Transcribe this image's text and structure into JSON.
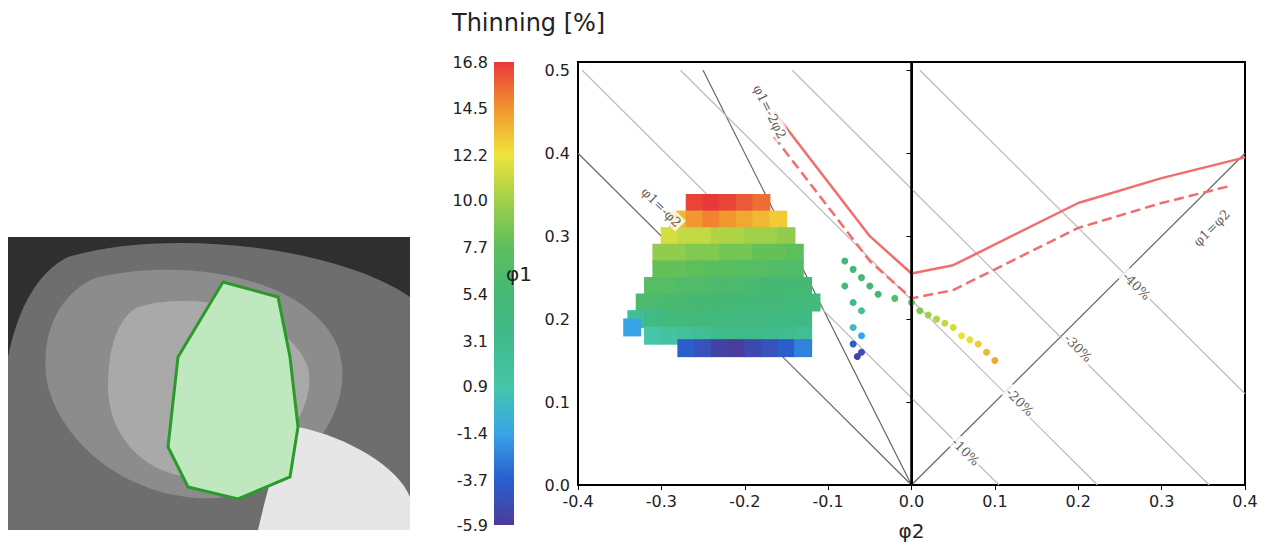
{
  "chart_data": {
    "type": "scatter",
    "title": "Thinning [%]",
    "x_label": "φ2",
    "y_label": "φ1",
    "xlim": [
      -0.4,
      0.4
    ],
    "xticks": [
      -0.4,
      -0.3,
      -0.2,
      -0.1,
      {
        "value": 0,
        "label": "0.0"
      },
      0.1,
      0.2,
      0.3,
      0.4
    ],
    "ylim": [
      0,
      0.51
    ],
    "yticks": [
      {
        "value": 0,
        "label": "0.0"
      },
      0.1,
      0.2,
      0.3,
      0.4,
      0.5
    ],
    "grid": false,
    "colorbar": {
      "range": [
        -5.9,
        16.8
      ],
      "ticks": [
        -5.9,
        -3.7,
        -1.4,
        0.9,
        3.1,
        5.4,
        7.7,
        {
          "value": 10,
          "label": "10.0"
        },
        12.2,
        14.5,
        16.8
      ],
      "colors": [
        "#4a3c9c",
        "#2a5fcf",
        "#38a6e6",
        "#46c6a8",
        "#3fba8a",
        "#45b874",
        "#5cbf5c",
        "#9fd04a",
        "#f0e43a",
        "#f2952e",
        "#e8383a"
      ]
    },
    "series": [
      {
        "marker": "square",
        "values": [
          [
            -0.26,
            0.34,
            16.5
          ],
          [
            -0.24,
            0.34,
            16.8
          ],
          [
            -0.22,
            0.34,
            16.5
          ],
          [
            -0.2,
            0.34,
            16
          ],
          [
            -0.18,
            0.34,
            15.5
          ],
          [
            -0.28,
            0.32,
            13.5
          ],
          [
            -0.26,
            0.32,
            14.5
          ],
          [
            -0.24,
            0.32,
            15
          ],
          [
            -0.22,
            0.32,
            14.5
          ],
          [
            -0.2,
            0.32,
            14
          ],
          [
            -0.18,
            0.32,
            13.5
          ],
          [
            -0.16,
            0.32,
            13
          ],
          [
            -0.29,
            0.3,
            11.5
          ],
          [
            -0.27,
            0.3,
            11
          ],
          [
            -0.25,
            0.3,
            11
          ],
          [
            -0.23,
            0.3,
            10.5
          ],
          [
            -0.21,
            0.3,
            10.5
          ],
          [
            -0.19,
            0.3,
            10
          ],
          [
            -0.17,
            0.3,
            10
          ],
          [
            -0.15,
            0.3,
            9.5
          ],
          [
            -0.3,
            0.28,
            9.5
          ],
          [
            -0.28,
            0.28,
            9.5
          ],
          [
            -0.26,
            0.28,
            9
          ],
          [
            -0.24,
            0.28,
            9
          ],
          [
            -0.22,
            0.28,
            8.5
          ],
          [
            -0.2,
            0.28,
            8.5
          ],
          [
            -0.18,
            0.28,
            8
          ],
          [
            -0.16,
            0.28,
            8
          ],
          [
            -0.14,
            0.28,
            7.7
          ],
          [
            -0.3,
            0.26,
            8
          ],
          [
            -0.28,
            0.26,
            8
          ],
          [
            -0.26,
            0.26,
            7.7
          ],
          [
            -0.24,
            0.26,
            7.5
          ],
          [
            -0.22,
            0.26,
            7.5
          ],
          [
            -0.2,
            0.26,
            7
          ],
          [
            -0.18,
            0.26,
            7
          ],
          [
            -0.16,
            0.26,
            6.5
          ],
          [
            -0.14,
            0.26,
            6.5
          ],
          [
            -0.31,
            0.24,
            7
          ],
          [
            -0.29,
            0.24,
            7
          ],
          [
            -0.27,
            0.24,
            6.5
          ],
          [
            -0.25,
            0.24,
            6.5
          ],
          [
            -0.23,
            0.24,
            6
          ],
          [
            -0.21,
            0.24,
            6
          ],
          [
            -0.19,
            0.24,
            5.8
          ],
          [
            -0.17,
            0.24,
            5.5
          ],
          [
            -0.15,
            0.24,
            5.4
          ],
          [
            -0.13,
            0.24,
            5.4
          ],
          [
            -0.32,
            0.22,
            6
          ],
          [
            -0.3,
            0.22,
            6
          ],
          [
            -0.28,
            0.22,
            5.8
          ],
          [
            -0.26,
            0.22,
            5.5
          ],
          [
            -0.24,
            0.22,
            5.5
          ],
          [
            -0.22,
            0.22,
            5.4
          ],
          [
            -0.2,
            0.22,
            5.2
          ],
          [
            -0.18,
            0.22,
            5
          ],
          [
            -0.16,
            0.22,
            5
          ],
          [
            -0.14,
            0.22,
            4.8
          ],
          [
            -0.12,
            0.22,
            4.8
          ],
          [
            -0.33,
            0.2,
            2.5
          ],
          [
            -0.31,
            0.2,
            3.5
          ],
          [
            -0.29,
            0.2,
            4.5
          ],
          [
            -0.27,
            0.2,
            4.8
          ],
          [
            -0.25,
            0.2,
            4.8
          ],
          [
            -0.23,
            0.2,
            4.5
          ],
          [
            -0.21,
            0.2,
            4.5
          ],
          [
            -0.19,
            0.2,
            4.2
          ],
          [
            -0.17,
            0.2,
            4
          ],
          [
            -0.15,
            0.2,
            4
          ],
          [
            -0.13,
            0.2,
            4
          ],
          [
            -0.335,
            0.19,
            -1.4
          ],
          [
            -0.31,
            0.18,
            0.9
          ],
          [
            -0.29,
            0.18,
            1.5
          ],
          [
            -0.27,
            0.18,
            2
          ],
          [
            -0.25,
            0.18,
            2.5
          ],
          [
            -0.23,
            0.18,
            3
          ],
          [
            -0.21,
            0.18,
            3.1
          ],
          [
            -0.19,
            0.18,
            3.1
          ],
          [
            -0.17,
            0.18,
            3
          ],
          [
            -0.15,
            0.18,
            2.8
          ],
          [
            -0.13,
            0.18,
            2.5
          ],
          [
            -0.27,
            0.165,
            -3.7
          ],
          [
            -0.25,
            0.165,
            -4.5
          ],
          [
            -0.23,
            0.165,
            -5.5
          ],
          [
            -0.21,
            0.165,
            -5.9
          ],
          [
            -0.19,
            0.165,
            -5
          ],
          [
            -0.17,
            0.165,
            -4.5
          ],
          [
            -0.15,
            0.165,
            -3.7
          ],
          [
            -0.13,
            0.165,
            -2.5
          ]
        ]
      },
      {
        "marker": "circle",
        "values": [
          [
            -0.08,
            0.27,
            5
          ],
          [
            -0.07,
            0.26,
            5.4
          ],
          [
            -0.06,
            0.25,
            5.5
          ],
          [
            -0.08,
            0.24,
            4.5
          ],
          [
            -0.05,
            0.24,
            5
          ],
          [
            -0.07,
            0.22,
            3.5
          ],
          [
            -0.06,
            0.21,
            2
          ],
          [
            -0.07,
            0.19,
            0
          ],
          [
            -0.06,
            0.18,
            -1.4
          ],
          [
            -0.07,
            0.17,
            -3.7
          ],
          [
            -0.06,
            0.16,
            -5
          ],
          [
            -0.065,
            0.155,
            -5.5
          ],
          [
            -0.04,
            0.23,
            5.4
          ],
          [
            -0.02,
            0.225,
            7
          ],
          [
            0,
            0.22,
            8
          ],
          [
            0.01,
            0.21,
            9
          ],
          [
            0.02,
            0.205,
            10
          ],
          [
            0.03,
            0.2,
            10.5
          ],
          [
            0.04,
            0.195,
            11
          ],
          [
            0.05,
            0.19,
            11.5
          ],
          [
            0.06,
            0.18,
            12
          ],
          [
            0.07,
            0.175,
            12.5
          ],
          [
            0.08,
            0.17,
            13
          ],
          [
            0.09,
            0.16,
            13.5
          ],
          [
            0.1,
            0.15,
            14
          ]
        ]
      }
    ],
    "curves": [
      {
        "color": "#f26d6d",
        "line_style": "solid",
        "x": [
          -0.165,
          -0.05,
          0,
          0.05,
          0.2,
          0.3,
          0.4
        ],
        "y": [
          0.45,
          0.3,
          0.255,
          0.265,
          0.34,
          0.37,
          0.395
        ]
      },
      {
        "color": "#f26d6d",
        "line_style": "dashed",
        "x": [
          -0.165,
          -0.05,
          0,
          0.05,
          0.2,
          0.3,
          0.38
        ],
        "y": [
          0.42,
          0.27,
          0.225,
          0.235,
          0.31,
          0.34,
          0.36
        ]
      }
    ],
    "lines": [
      {
        "color": "#000000",
        "line_style": "thick",
        "x": [
          0,
          0
        ],
        "y": [
          0,
          0.51
        ]
      },
      {
        "label": "φ1=-φ2",
        "color": "#666666",
        "line_style": "solid",
        "x": [
          0,
          -0.4
        ],
        "y": [
          0,
          0.4
        ],
        "label_x": -0.3,
        "label_y": 0.335
      },
      {
        "label": "φ1=-2φ2",
        "color": "#666666",
        "line_style": "solid",
        "x": [
          0,
          -0.25
        ],
        "y": [
          0,
          0.5
        ],
        "label_x": -0.17,
        "label_y": 0.45
      },
      {
        "label": "φ1=φ2",
        "color": "#666666",
        "line_style": "solid",
        "x": [
          0,
          0.4
        ],
        "y": [
          0,
          0.4
        ],
        "label_x": 0.36,
        "label_y": 0.31
      },
      {
        "label": "-10%",
        "color": "#bbbbbb",
        "line_style": "solid",
        "x": [
          0.105,
          -0.395
        ],
        "y": [
          0,
          0.5
        ],
        "label_x": 0.065,
        "label_y": 0.04
      },
      {
        "label": "-20%",
        "color": "#bbbbbb",
        "line_style": "solid",
        "x": [
          0.223,
          -0.277
        ],
        "y": [
          0,
          0.5
        ],
        "label_x": 0.13,
        "label_y": 0.1
      },
      {
        "label": "-30%",
        "color": "#bbbbbb",
        "line_style": "solid",
        "x": [
          0.357,
          -0.143
        ],
        "y": [
          0,
          0.5
        ],
        "label_x": 0.2,
        "label_y": 0.165
      },
      {
        "label": "-40%",
        "color": "#bbbbbb",
        "line_style": "solid",
        "x": [
          0.4,
          0.01
        ],
        "y": [
          0.11,
          0.5
        ],
        "label_x": 0.27,
        "label_y": 0.24
      }
    ]
  }
}
